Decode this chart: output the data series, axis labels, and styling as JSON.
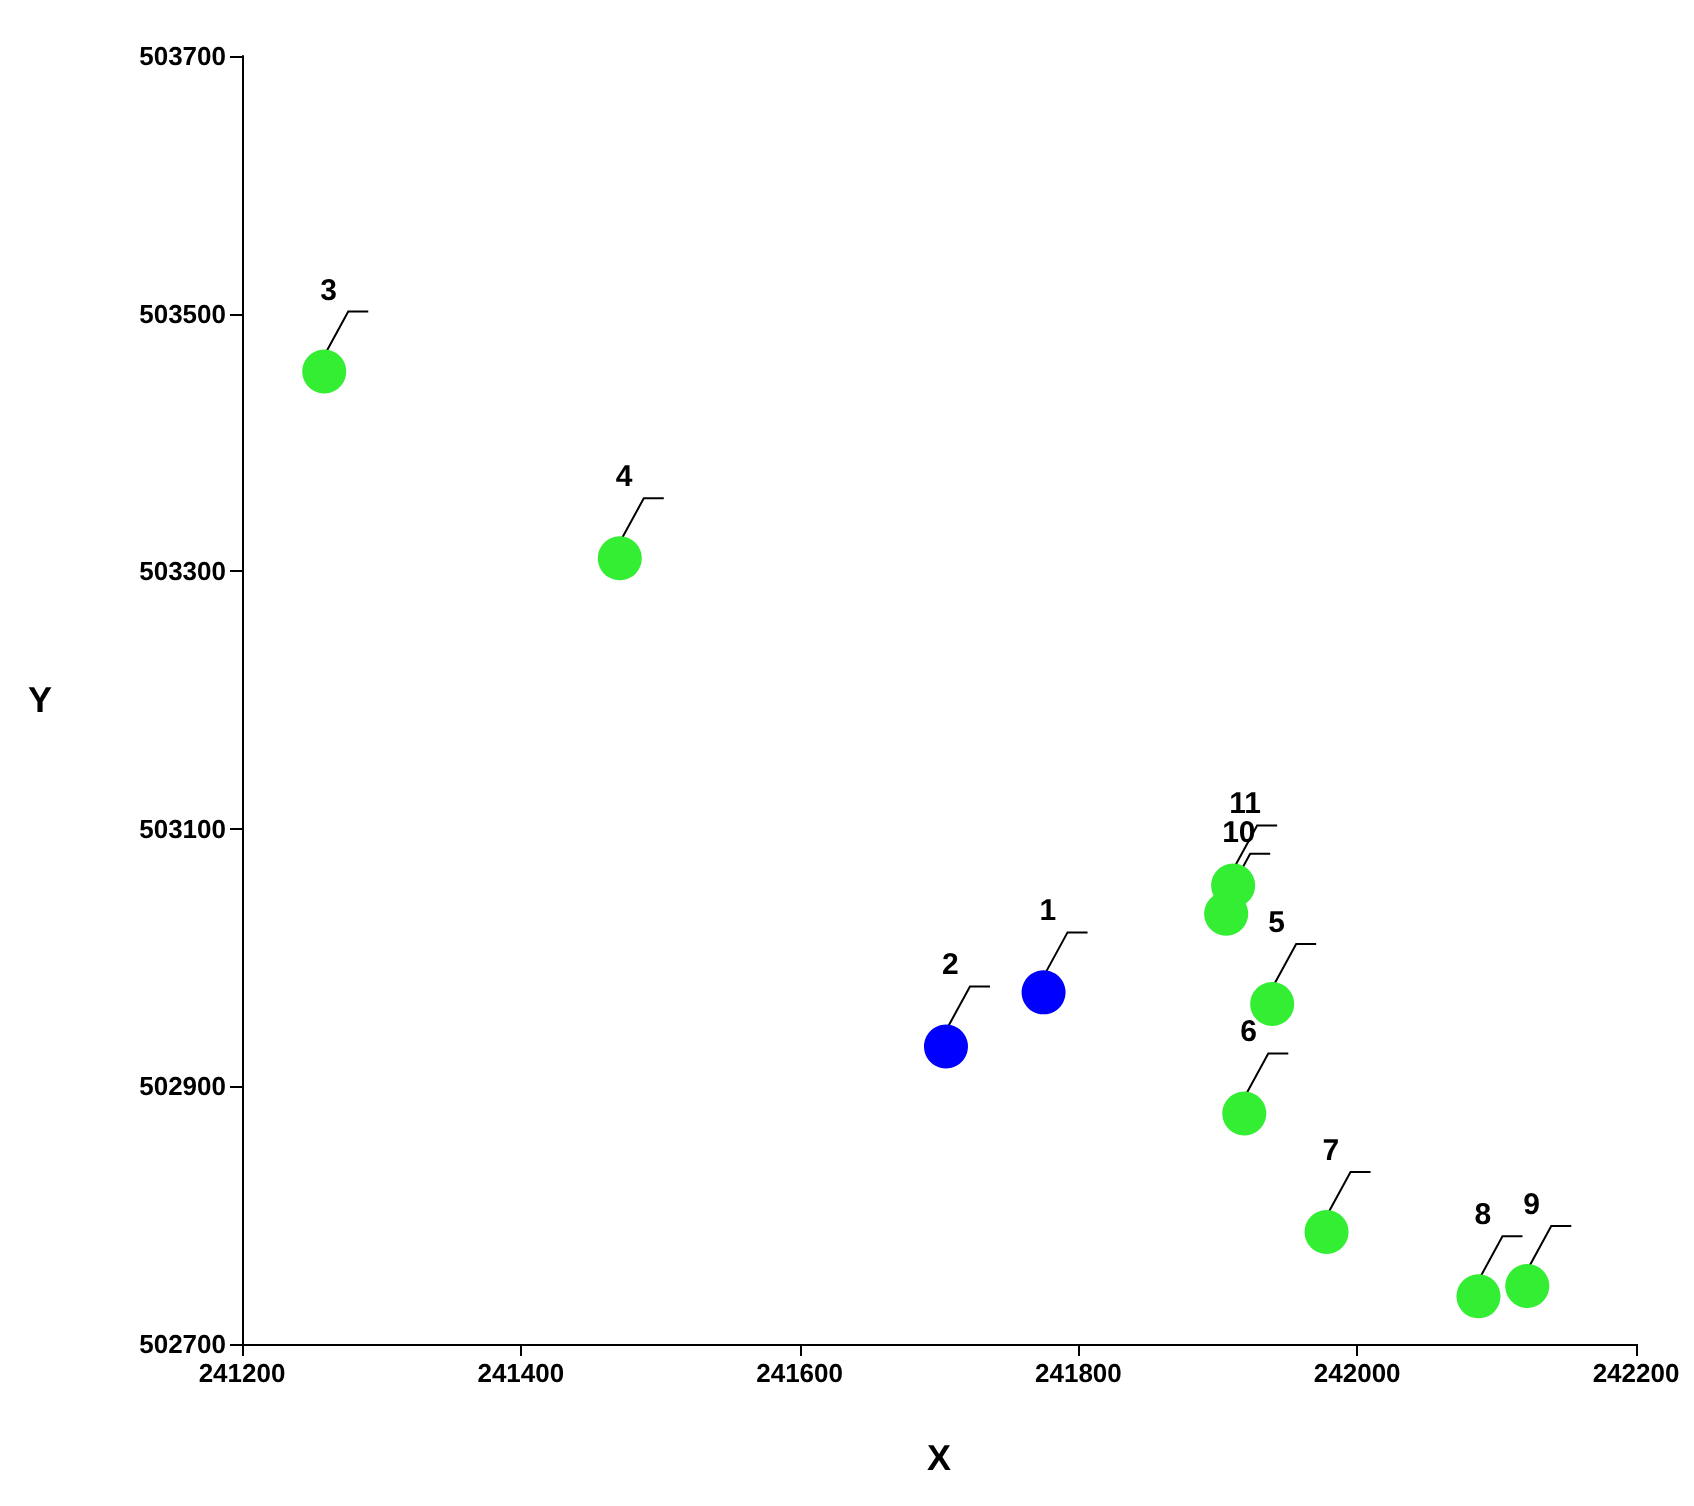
{
  "chart_data": {
    "type": "scatter",
    "xlabel": "X",
    "ylabel": "Y",
    "xlim": [
      241200,
      242200
    ],
    "xticks": [
      241200,
      241400,
      241600,
      241800,
      242000,
      242200
    ],
    "ylim": [
      502700,
      503700
    ],
    "yticks": [
      502700,
      502900,
      503100,
      503300,
      503500,
      503700
    ],
    "marker": "circle",
    "series": [
      {
        "color": "#0000ff",
        "x": [
          241775,
          241705
        ],
        "values": [
          502973,
          502931
        ]
      },
      {
        "color": "#33ee33",
        "x": [
          241259,
          241471,
          241939,
          241919,
          241978,
          242087,
          242122,
          241906,
          241911
        ],
        "values": [
          503455,
          503310,
          502964,
          502879,
          502787,
          502737,
          502745,
          503034,
          503056
        ]
      }
    ],
    "annotations": [
      {
        "text": "1",
        "x": 241775,
        "y": 502973
      },
      {
        "text": "2",
        "x": 241705,
        "y": 502931
      },
      {
        "text": "3",
        "x": 241259,
        "y": 503455
      },
      {
        "text": "4",
        "x": 241471,
        "y": 503310
      },
      {
        "text": "5",
        "x": 241939,
        "y": 502964
      },
      {
        "text": "6",
        "x": 241919,
        "y": 502879
      },
      {
        "text": "7",
        "x": 241978,
        "y": 502787
      },
      {
        "text": "8",
        "x": 242087,
        "y": 502737
      },
      {
        "text": "9",
        "x": 242122,
        "y": 502745
      },
      {
        "text": "10",
        "x": 241906,
        "y": 503034
      },
      {
        "text": "11",
        "x": 241911,
        "y": 503056
      }
    ]
  }
}
